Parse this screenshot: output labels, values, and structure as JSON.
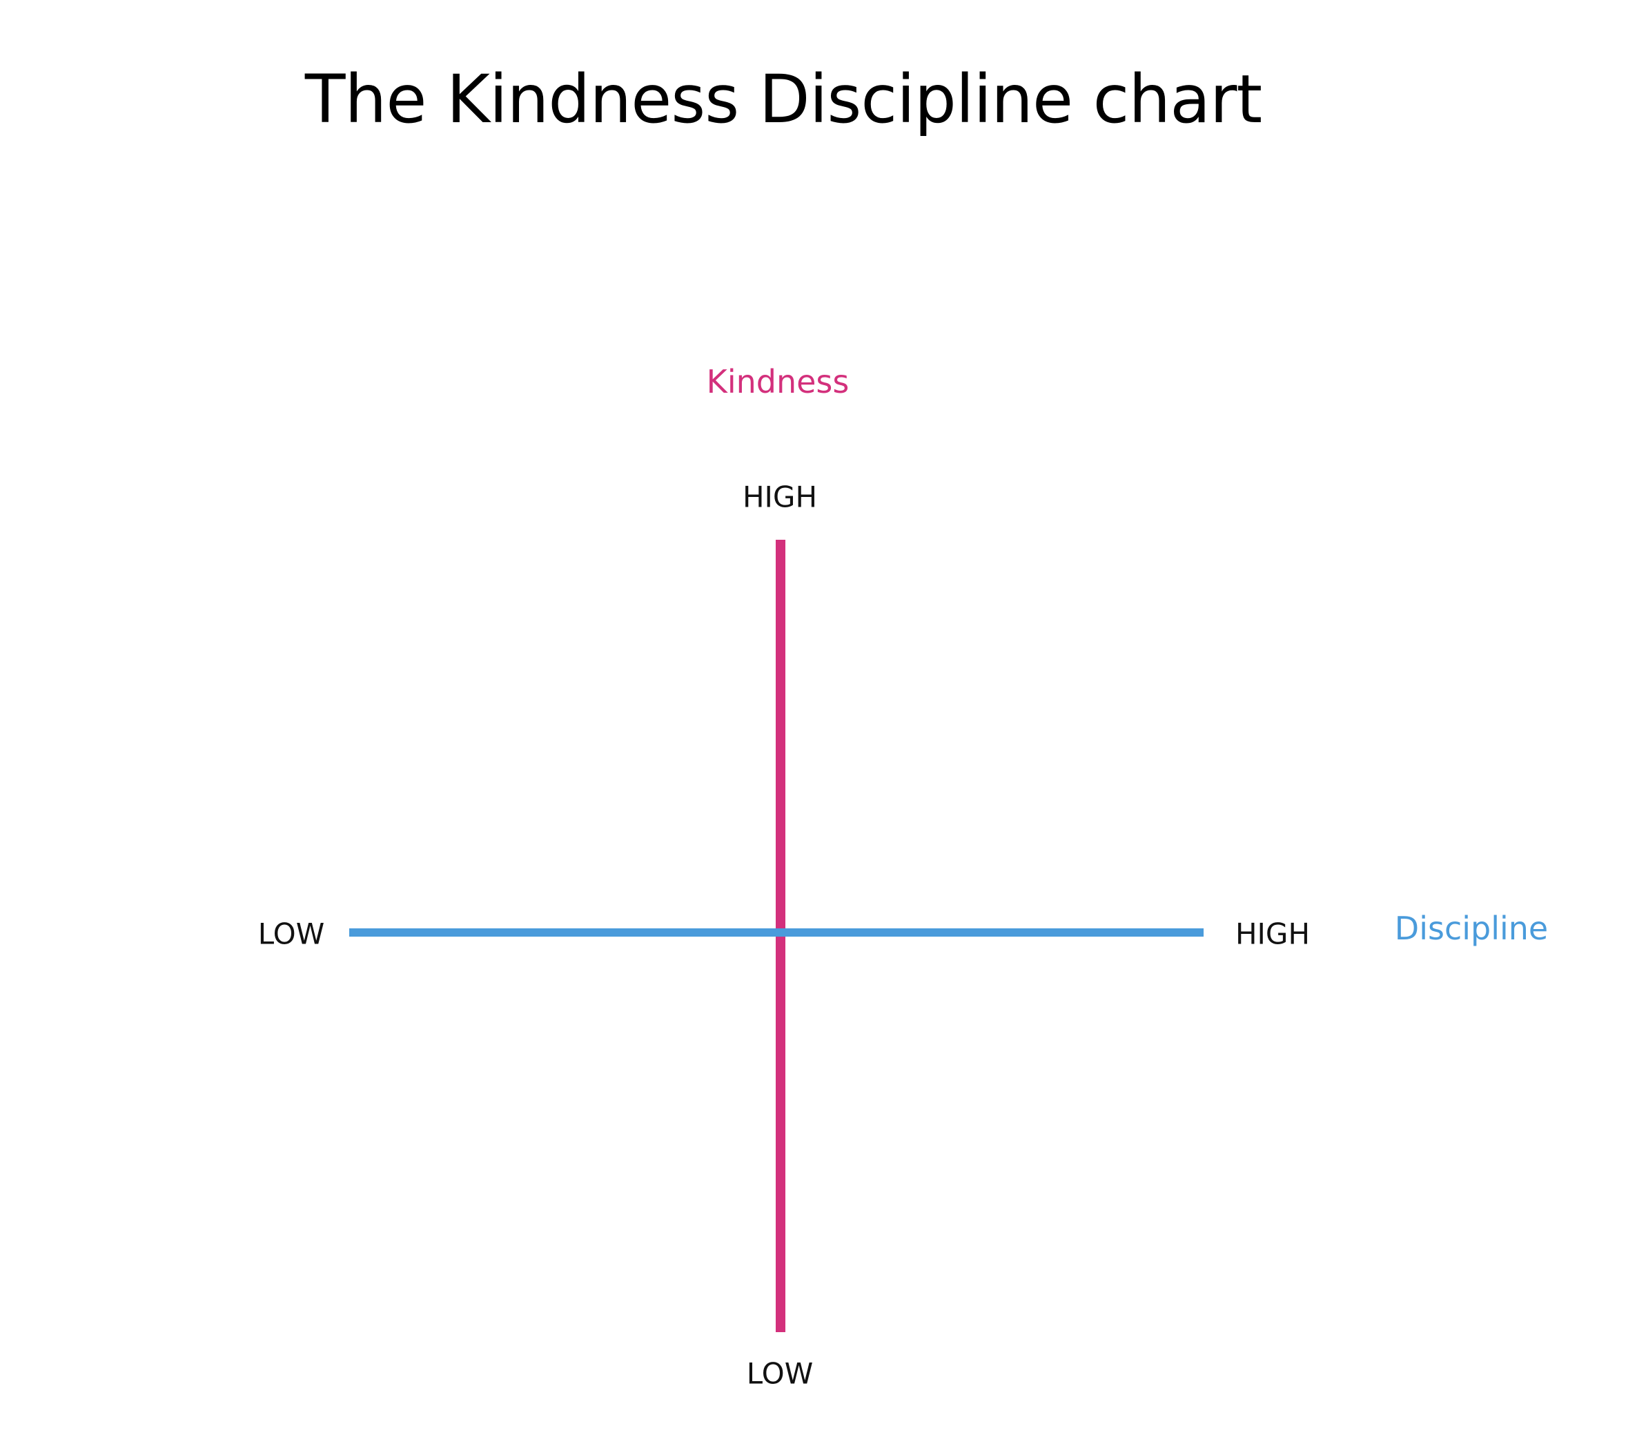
{
  "title": "The Kindness Discipline chart",
  "axes": {
    "kindness": {
      "name": "Kindness",
      "high_label": "HIGH",
      "low_label": "LOW",
      "color": "#D3307C"
    },
    "discipline": {
      "name": "Discipline",
      "high_label": "HIGH",
      "low_label": "LOW",
      "color": "#4A9BDB"
    }
  }
}
